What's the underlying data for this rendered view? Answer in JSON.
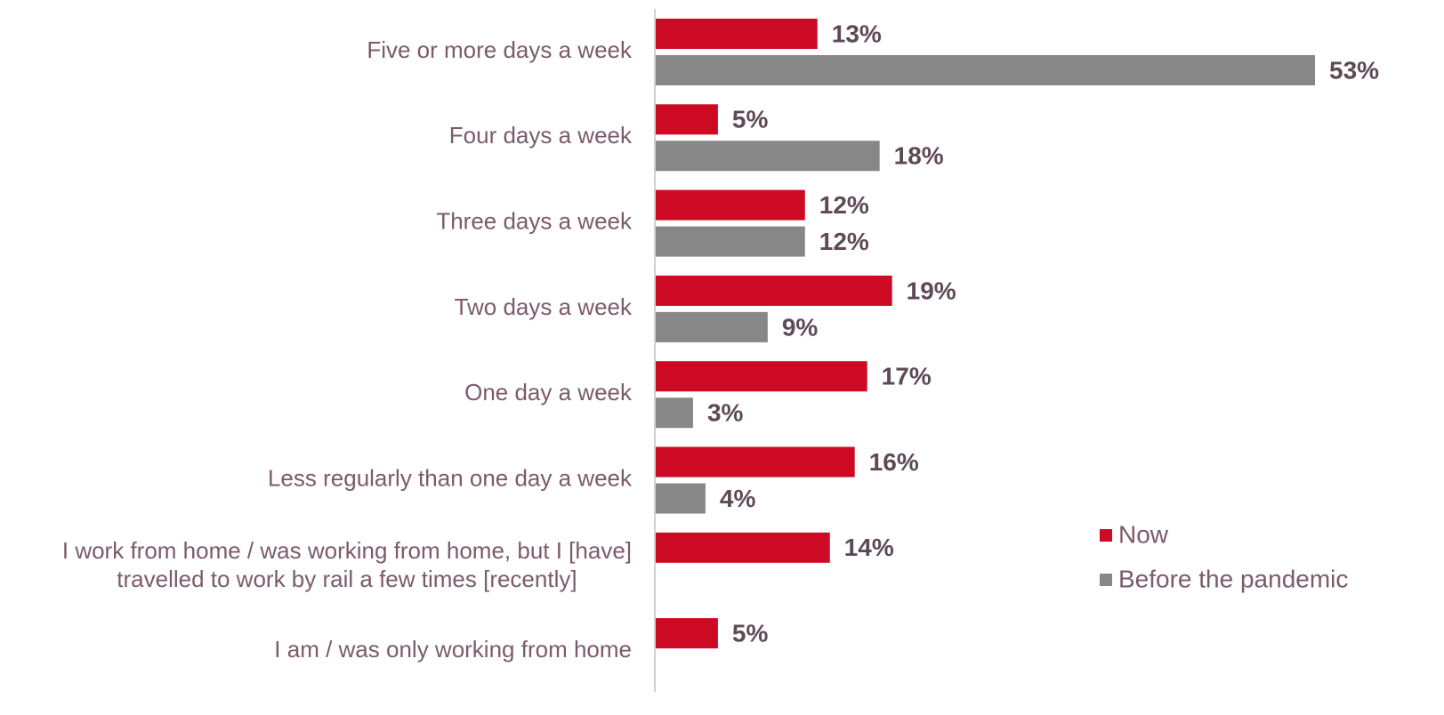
{
  "chart_data": {
    "type": "bar",
    "orientation": "horizontal",
    "categories": [
      "Five or more days a week",
      "Four days a week",
      "Three days a week",
      "Two days a week",
      "One day a week",
      "Less regularly than one day a week",
      "I work from home / was working from home, but I [have]\ntravelled to work by rail a few times [recently]",
      "I am / was only working from home"
    ],
    "series": [
      {
        "name": "Now",
        "color": "#cc0a23",
        "values": [
          13,
          5,
          12,
          19,
          17,
          16,
          14,
          5
        ],
        "value_labels": [
          "13%",
          "5%",
          "12%",
          "19%",
          "17%",
          "16%",
          "14%",
          "5%"
        ]
      },
      {
        "name": "Before the pandemic",
        "color": "#878787",
        "values": [
          53,
          18,
          12,
          9,
          3,
          4,
          null,
          null
        ],
        "value_labels": [
          "53%",
          "18%",
          "12%",
          "9%",
          "3%",
          "4%",
          null,
          null
        ]
      }
    ],
    "legend": "bottom-right"
  }
}
